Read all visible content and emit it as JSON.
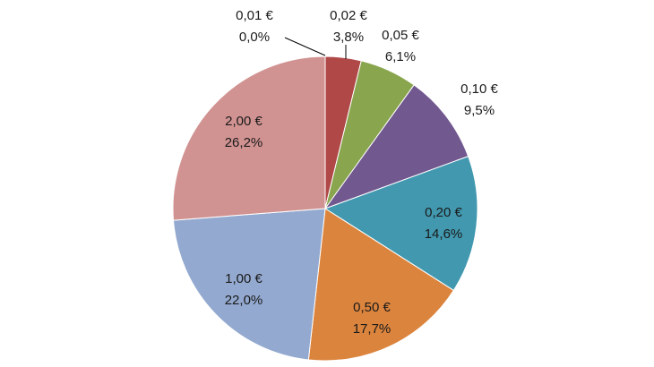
{
  "chart_data": {
    "type": "pie",
    "title": "",
    "start_angle_deg": 0,
    "direction": "clockwise",
    "slices": [
      {
        "label": "0,01 €",
        "value": 0.0,
        "percent_label": "0,0%",
        "color": "#4F81BD"
      },
      {
        "label": "0,02 €",
        "value": 3.8,
        "percent_label": "3,8%",
        "color": "#B04848"
      },
      {
        "label": "0,05 €",
        "value": 6.1,
        "percent_label": "6,1%",
        "color": "#89A54E"
      },
      {
        "label": "0,10 €",
        "value": 9.5,
        "percent_label": "9,5%",
        "color": "#71588F"
      },
      {
        "label": "0,20 €",
        "value": 14.6,
        "percent_label": "14,6%",
        "color": "#4198AF"
      },
      {
        "label": "0,50 €",
        "value": 17.7,
        "percent_label": "17,7%",
        "color": "#DB843D"
      },
      {
        "label": "1,00 €",
        "value": 22.0,
        "percent_label": "22,0%",
        "color": "#93A9CF"
      },
      {
        "label": "2,00 €",
        "value": 26.2,
        "percent_label": "26,2%",
        "color": "#D19392"
      }
    ]
  }
}
